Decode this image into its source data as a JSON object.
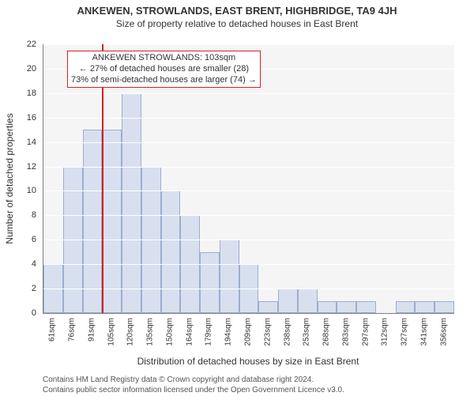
{
  "title_line1": "ANKEWEN, STROWLANDS, EAST BRENT, HIGHBRIDGE, TA9 4JH",
  "title_line2": "Size of property relative to detached houses in East Brent",
  "ylabel": "Number of detached properties",
  "xlabel": "Distribution of detached houses by size in East Brent",
  "chart": {
    "type": "histogram",
    "background_color": "#f5f5f5",
    "grid_color": "#ffffff",
    "ylim": [
      0,
      22
    ],
    "ytick_step": 2,
    "bar_fill": "#d8e0f0",
    "bar_border": "#9aaed0",
    "n_bars": 21,
    "x_tick_labels": [
      "61sqm",
      "76sqm",
      "91sqm",
      "105sqm",
      "120sqm",
      "135sqm",
      "150sqm",
      "164sqm",
      "179sqm",
      "194sqm",
      "209sqm",
      "223sqm",
      "238sqm",
      "253sqm",
      "268sqm",
      "283sqm",
      "297sqm",
      "312sqm",
      "327sqm",
      "341sqm",
      "356sqm"
    ],
    "values": [
      4,
      12,
      15,
      15,
      18,
      12,
      10,
      8,
      5,
      6,
      4,
      1,
      2,
      2,
      1,
      1,
      1,
      0,
      1,
      1,
      1
    ],
    "reference_line": {
      "bar_index": 3,
      "fraction_in_bar": 0.0,
      "color": "#d8201f"
    },
    "annotation": {
      "border_color": "#d8201f",
      "line1": "ANKEWEN STROWLANDS: 103sqm",
      "line2": "← 27% of detached houses are smaller (28)",
      "line3": "73% of semi-detached houses are larger (74) →"
    }
  },
  "footer_line1": "Contains HM Land Registry data © Crown copyright and database right 2024.",
  "footer_line2": "Contains public sector information licensed under the Open Government Licence v3.0."
}
